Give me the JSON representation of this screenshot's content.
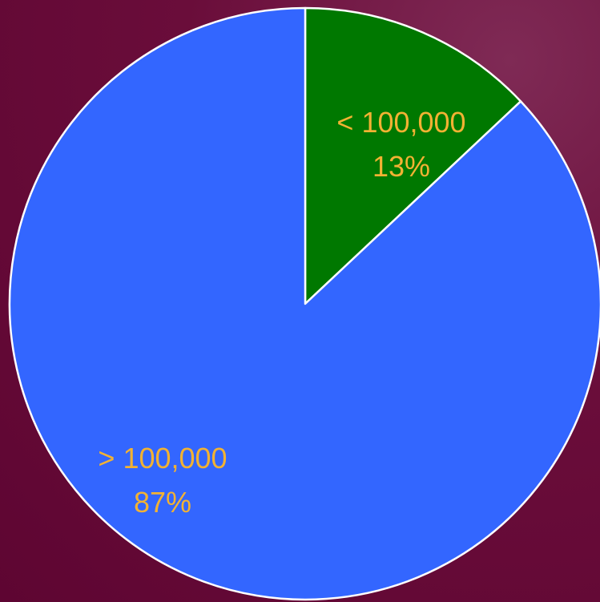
{
  "chart_data": {
    "type": "pie",
    "start_angle_deg": 0,
    "direction": "clockwise",
    "slices": [
      {
        "category": "< 100,000",
        "value": 13,
        "percent_label": "13%",
        "color": "#007800"
      },
      {
        "category": "> 100,000",
        "value": 87,
        "percent_label": "87%",
        "color": "#3366FF"
      }
    ],
    "label_color": "#F2B233",
    "edge_color": "#FFFFFF",
    "legend": "none"
  }
}
